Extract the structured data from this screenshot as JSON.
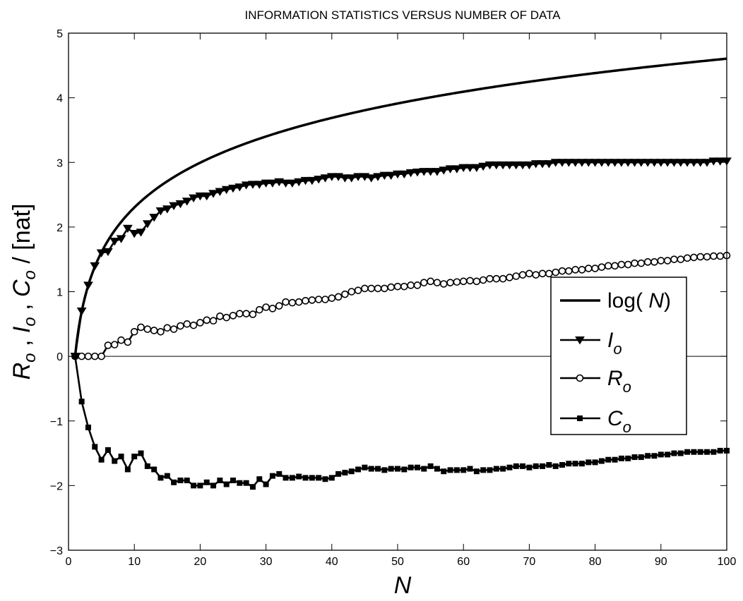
{
  "chart_data": {
    "type": "line",
    "title": "INFORMATION STATISTICS VERSUS NUMBER OF DATA",
    "xlabel": "N",
    "ylabel": "R_o , I_o , C_o / [nat]",
    "xlim": [
      0,
      100
    ],
    "ylim": [
      -3,
      5
    ],
    "xticks": [
      0,
      10,
      20,
      30,
      40,
      50,
      60,
      70,
      80,
      90,
      100
    ],
    "yticks": [
      -3,
      -2,
      -1,
      0,
      1,
      2,
      3,
      4,
      5
    ],
    "grid": false,
    "legend_position": "right",
    "zero_line": 0,
    "legend": [
      {
        "key": "log",
        "prefix": "log( ",
        "italic": "N",
        "suffix": ")",
        "marker": "none"
      },
      {
        "key": "I",
        "italic": "I",
        "sub": "o",
        "marker": "triangle-down"
      },
      {
        "key": "R",
        "italic": "R",
        "sub": "o",
        "marker": "circle"
      },
      {
        "key": "C",
        "italic": "C",
        "sub": "o",
        "marker": "square"
      }
    ],
    "series": [
      {
        "name": "log( N)",
        "function": "ln(N)",
        "x_start": 1,
        "x_end": 100,
        "color": "#000000"
      },
      {
        "name": "I_o",
        "marker": "triangle-down",
        "x_start": 1,
        "x_step": 1,
        "color": "#000000",
        "y": [
          0,
          0.7,
          1.1,
          1.4,
          1.6,
          1.62,
          1.78,
          1.82,
          1.98,
          1.9,
          1.92,
          2.05,
          2.15,
          2.25,
          2.28,
          2.33,
          2.36,
          2.4,
          2.45,
          2.48,
          2.48,
          2.52,
          2.55,
          2.58,
          2.6,
          2.62,
          2.65,
          2.66,
          2.66,
          2.68,
          2.68,
          2.7,
          2.68,
          2.68,
          2.7,
          2.72,
          2.72,
          2.74,
          2.76,
          2.78,
          2.78,
          2.76,
          2.76,
          2.78,
          2.78,
          2.76,
          2.78,
          2.8,
          2.8,
          2.82,
          2.82,
          2.84,
          2.85,
          2.86,
          2.86,
          2.86,
          2.88,
          2.9,
          2.9,
          2.92,
          2.92,
          2.92,
          2.94,
          2.96,
          2.96,
          2.96,
          2.96,
          2.96,
          2.96,
          2.96,
          2.98,
          2.98,
          2.98,
          3.0,
          3.0,
          3.0,
          3.0,
          3.0,
          3.0,
          3.0,
          3.0,
          3.0,
          3.0,
          3.0,
          3.0,
          3.0,
          3.0,
          3.0,
          3.0,
          3.0,
          3.0,
          3.0,
          3.0,
          3.0,
          3.0,
          3.0,
          3.0,
          3.02,
          3.02,
          3.02
        ]
      },
      {
        "name": "R_o",
        "marker": "circle",
        "x_start": 1,
        "x_step": 1,
        "color": "#000000",
        "y": [
          0,
          0,
          0,
          0,
          0,
          0.17,
          0.18,
          0.25,
          0.22,
          0.38,
          0.45,
          0.42,
          0.4,
          0.38,
          0.44,
          0.42,
          0.47,
          0.5,
          0.48,
          0.52,
          0.56,
          0.55,
          0.62,
          0.6,
          0.63,
          0.66,
          0.66,
          0.65,
          0.72,
          0.76,
          0.74,
          0.78,
          0.84,
          0.83,
          0.84,
          0.86,
          0.87,
          0.88,
          0.88,
          0.9,
          0.92,
          0.96,
          1.0,
          1.02,
          1.05,
          1.05,
          1.05,
          1.05,
          1.07,
          1.08,
          1.08,
          1.1,
          1.1,
          1.14,
          1.16,
          1.14,
          1.12,
          1.14,
          1.15,
          1.16,
          1.17,
          1.16,
          1.18,
          1.2,
          1.2,
          1.2,
          1.22,
          1.24,
          1.26,
          1.28,
          1.26,
          1.28,
          1.28,
          1.3,
          1.32,
          1.32,
          1.34,
          1.34,
          1.36,
          1.36,
          1.38,
          1.4,
          1.4,
          1.42,
          1.42,
          1.44,
          1.44,
          1.46,
          1.46,
          1.48,
          1.48,
          1.5,
          1.5,
          1.52,
          1.53,
          1.54,
          1.54,
          1.55,
          1.55,
          1.56
        ]
      },
      {
        "name": "C_o",
        "marker": "square",
        "x_start": 1,
        "x_step": 1,
        "color": "#000000",
        "y": [
          0,
          -0.7,
          -1.1,
          -1.4,
          -1.6,
          -1.45,
          -1.62,
          -1.55,
          -1.75,
          -1.55,
          -1.5,
          -1.7,
          -1.75,
          -1.88,
          -1.85,
          -1.95,
          -1.92,
          -1.92,
          -2.0,
          -2.0,
          -1.95,
          -2.0,
          -1.92,
          -1.98,
          -1.92,
          -1.96,
          -1.96,
          -2.02,
          -1.9,
          -1.98,
          -1.85,
          -1.82,
          -1.88,
          -1.88,
          -1.86,
          -1.88,
          -1.88,
          -1.88,
          -1.9,
          -1.88,
          -1.82,
          -1.8,
          -1.78,
          -1.75,
          -1.72,
          -1.74,
          -1.74,
          -1.76,
          -1.74,
          -1.74,
          -1.75,
          -1.72,
          -1.72,
          -1.74,
          -1.7,
          -1.74,
          -1.78,
          -1.76,
          -1.76,
          -1.76,
          -1.74,
          -1.78,
          -1.76,
          -1.76,
          -1.74,
          -1.74,
          -1.72,
          -1.7,
          -1.7,
          -1.72,
          -1.7,
          -1.7,
          -1.68,
          -1.7,
          -1.68,
          -1.66,
          -1.66,
          -1.66,
          -1.64,
          -1.64,
          -1.62,
          -1.6,
          -1.6,
          -1.58,
          -1.58,
          -1.56,
          -1.56,
          -1.54,
          -1.54,
          -1.52,
          -1.52,
          -1.5,
          -1.5,
          -1.48,
          -1.48,
          -1.48,
          -1.48,
          -1.48,
          -1.46,
          -1.46
        ]
      }
    ]
  }
}
